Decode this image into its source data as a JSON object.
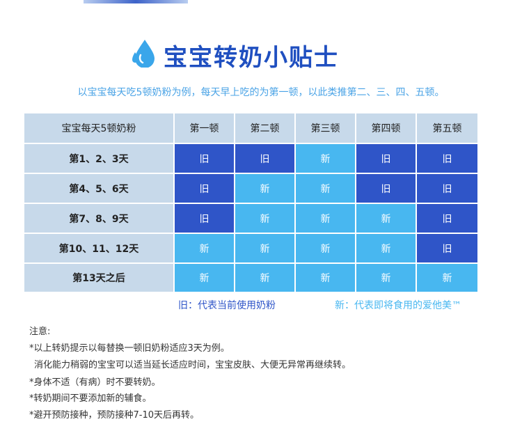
{
  "header": {
    "title": "宝宝转奶小贴士",
    "subtitle": "以宝宝每天吃5顿奶粉为例，每天早上吃的为第一顿，以此类推第二、三、四、五顿。"
  },
  "table": {
    "header": [
      "宝宝每天5顿奶粉",
      "第一顿",
      "第二顿",
      "第三顿",
      "第四顿",
      "第五顿"
    ],
    "rows": [
      [
        "第1、2、3天",
        "旧",
        "旧",
        "新",
        "旧",
        "旧"
      ],
      [
        "第4、5、6天",
        "旧",
        "新",
        "新",
        "旧",
        "旧"
      ],
      [
        "第7、8、9天",
        "旧",
        "新",
        "新",
        "新",
        "旧"
      ],
      [
        "第10、11、12天",
        "新",
        "新",
        "新",
        "新",
        "旧"
      ],
      [
        "第13天之后",
        "新",
        "新",
        "新",
        "新",
        "新"
      ]
    ]
  },
  "legend": {
    "old": "旧：代表当前使用奶粉",
    "new": "新：代表即将食用的爱他美™"
  },
  "notes": [
    "注意:",
    "*以上转奶提示以每替换一顿旧奶粉适应3天为例。",
    "消化能力稍弱的宝宝可以适当延长适应时间，宝宝皮肤、大便无异常再继续转。",
    "*身体不适（有病）时不要转奶。",
    "*转奶期间不要添加新的辅食。",
    "*避开预防接种，预防接种7-10天后再转。"
  ]
}
